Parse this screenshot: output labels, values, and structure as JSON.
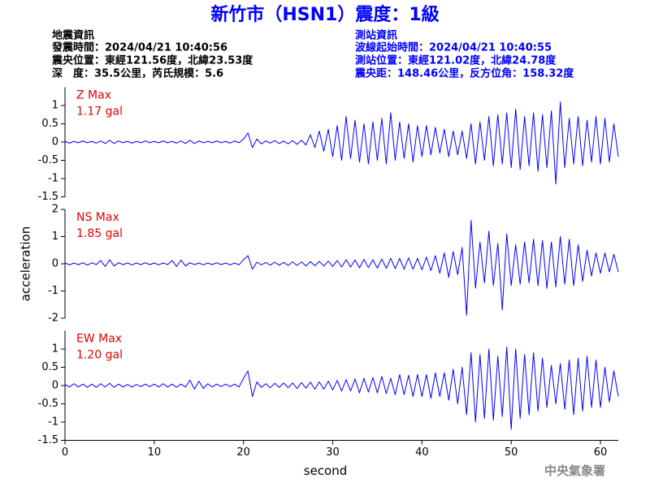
{
  "header": {
    "title": "新竹市（HSN1）震度：1級",
    "left": [
      "地震資訊",
      "發震時間：2024/04/21 10:40:56",
      "震央位置：東經121.56度，北緯23.53度",
      "深　度：35.5公里，芮氏規模：5.6"
    ],
    "right": [
      "測站資訊",
      "波線起始時間：2024/04/21 10:40:55",
      "測站位置：東經121.02度，北緯24.78度",
      "震央距：148.46公里，反方位角：158.32度"
    ],
    "footer": "中央氣象署"
  },
  "chart_data": [
    {
      "type": "line",
      "label": "Z Max",
      "max_label": "1.17 gal",
      "color": "#0000ff",
      "xlim": [
        0,
        62
      ],
      "ylim": [
        -1.5,
        1.5
      ],
      "yticks": [
        -1.5,
        -1,
        -0.5,
        0,
        0.5,
        1
      ],
      "x": [
        0,
        0.5,
        1,
        1.5,
        2,
        2.5,
        3,
        3.5,
        4,
        4.5,
        5,
        5.5,
        6,
        6.5,
        7,
        7.5,
        8,
        8.5,
        9,
        9.5,
        10,
        10.5,
        11,
        11.5,
        12,
        12.5,
        13,
        13.5,
        14,
        14.5,
        15,
        15.5,
        16,
        16.5,
        17,
        17.5,
        18,
        18.5,
        19,
        19.5,
        20,
        20.5,
        21,
        21.5,
        22,
        22.5,
        23,
        23.5,
        24,
        24.5,
        25,
        25.5,
        26,
        26.5,
        27,
        27.5,
        28,
        28.5,
        29,
        29.5,
        30,
        30.5,
        31,
        31.5,
        32,
        32.5,
        33,
        33.5,
        34,
        34.5,
        35,
        35.5,
        36,
        36.5,
        37,
        37.5,
        38,
        38.5,
        39,
        39.5,
        40,
        40.5,
        41,
        41.5,
        42,
        42.5,
        43,
        43.5,
        44,
        44.5,
        45,
        45.5,
        46,
        46.5,
        47,
        47.5,
        48,
        48.5,
        49,
        49.5,
        50,
        50.5,
        51,
        51.5,
        52,
        52.5,
        53,
        53.5,
        54,
        54.5,
        55,
        55.5,
        56,
        56.5,
        57,
        57.5,
        58,
        58.5,
        59,
        59.5,
        60,
        60.5,
        61,
        61.5,
        62
      ],
      "values": [
        0.02,
        -0.03,
        0.02,
        -0.02,
        0.03,
        -0.02,
        0.02,
        -0.03,
        0.03,
        -0.04,
        0.05,
        -0.04,
        0.03,
        -0.02,
        0.02,
        -0.03,
        0.02,
        -0.02,
        0.03,
        -0.02,
        0.02,
        -0.02,
        0.03,
        -0.02,
        0.02,
        -0.03,
        0.03,
        -0.04,
        0.05,
        -0.04,
        0.03,
        -0.02,
        0.02,
        -0.02,
        0.03,
        -0.02,
        0.02,
        -0.03,
        0.03,
        -0.02,
        0.08,
        0.25,
        -0.15,
        0.08,
        -0.05,
        0.03,
        -0.03,
        0.04,
        -0.04,
        0.03,
        -0.05,
        0.04,
        -0.06,
        0.05,
        -0.08,
        0.2,
        -0.15,
        0.3,
        -0.25,
        0.35,
        -0.4,
        0.45,
        -0.5,
        0.7,
        -0.45,
        0.6,
        -0.55,
        0.5,
        -0.6,
        0.55,
        -0.5,
        0.65,
        -0.6,
        0.8,
        -0.5,
        0.55,
        -0.45,
        0.5,
        -0.55,
        0.45,
        -0.4,
        0.45,
        -0.35,
        0.4,
        -0.3,
        0.35,
        -0.4,
        0.3,
        -0.35,
        0.3,
        -0.45,
        0.5,
        -0.6,
        0.55,
        -0.5,
        0.7,
        -0.65,
        0.75,
        -0.6,
        0.8,
        -0.7,
        0.9,
        -0.75,
        0.7,
        -0.65,
        0.8,
        -0.8,
        0.75,
        -0.7,
        0.85,
        -1.15,
        1.1,
        -0.7,
        0.65,
        -0.6,
        0.7,
        -0.65,
        0.6,
        -0.55,
        0.7,
        -0.6,
        0.65,
        -0.55,
        0.5,
        -0.4
      ]
    },
    {
      "type": "line",
      "label": "NS Max",
      "max_label": "1.85 gal",
      "color": "#0000ff",
      "ylabel": "acceleration",
      "xlim": [
        0,
        62
      ],
      "ylim": [
        -2,
        2
      ],
      "yticks": [
        -2,
        -1,
        0,
        1,
        2
      ],
      "x": [
        0,
        0.5,
        1,
        1.5,
        2,
        2.5,
        3,
        3.5,
        4,
        4.5,
        5,
        5.5,
        6,
        6.5,
        7,
        7.5,
        8,
        8.5,
        9,
        9.5,
        10,
        10.5,
        11,
        11.5,
        12,
        12.5,
        13,
        13.5,
        14,
        14.5,
        15,
        15.5,
        16,
        16.5,
        17,
        17.5,
        18,
        18.5,
        19,
        19.5,
        20,
        20.5,
        21,
        21.5,
        22,
        22.5,
        23,
        23.5,
        24,
        24.5,
        25,
        25.5,
        26,
        26.5,
        27,
        27.5,
        28,
        28.5,
        29,
        29.5,
        30,
        30.5,
        31,
        31.5,
        32,
        32.5,
        33,
        33.5,
        34,
        34.5,
        35,
        35.5,
        36,
        36.5,
        37,
        37.5,
        38,
        38.5,
        39,
        39.5,
        40,
        40.5,
        41,
        41.5,
        42,
        42.5,
        43,
        43.5,
        44,
        44.5,
        45,
        45.5,
        46,
        46.5,
        47,
        47.5,
        48,
        48.5,
        49,
        49.5,
        50,
        50.5,
        51,
        51.5,
        52,
        52.5,
        53,
        53.5,
        54,
        54.5,
        55,
        55.5,
        56,
        56.5,
        57,
        57.5,
        58,
        58.5,
        59,
        59.5,
        60,
        60.5,
        61,
        61.5,
        62
      ],
      "values": [
        0.03,
        -0.04,
        0.03,
        -0.03,
        0.04,
        -0.05,
        0.04,
        -0.03,
        0.12,
        -0.1,
        0.15,
        -0.08,
        0.04,
        -0.03,
        0.03,
        -0.04,
        0.03,
        -0.03,
        0.04,
        -0.03,
        0.03,
        -0.04,
        0.03,
        -0.03,
        0.12,
        -0.1,
        0.14,
        -0.08,
        0.04,
        -0.03,
        0.03,
        -0.04,
        0.03,
        -0.03,
        0.04,
        -0.03,
        0.03,
        -0.04,
        0.03,
        -0.04,
        0.15,
        0.3,
        -0.2,
        0.06,
        -0.04,
        0.05,
        -0.05,
        0.06,
        -0.05,
        0.05,
        -0.06,
        0.07,
        -0.06,
        0.07,
        -0.08,
        0.08,
        -0.07,
        0.09,
        -0.08,
        0.1,
        -0.1,
        0.12,
        -0.12,
        0.15,
        -0.12,
        0.14,
        -0.15,
        0.16,
        -0.14,
        0.15,
        -0.16,
        0.18,
        -0.17,
        0.2,
        -0.18,
        0.2,
        -0.2,
        0.22,
        -0.2,
        0.2,
        -0.22,
        0.25,
        -0.25,
        0.3,
        -0.35,
        0.4,
        -0.5,
        0.45,
        -0.4,
        0.6,
        -1.9,
        1.6,
        -0.9,
        0.8,
        -0.7,
        1.2,
        -0.8,
        0.75,
        -1.7,
        1.1,
        -0.8,
        0.7,
        -0.75,
        0.8,
        -0.7,
        0.9,
        -0.8,
        0.85,
        -0.9,
        0.8,
        -0.85,
        1.0,
        -0.75,
        0.9,
        -0.8,
        0.7,
        -0.65,
        0.5,
        -0.45,
        0.4,
        -0.35,
        0.4,
        -0.3,
        0.35,
        -0.3
      ]
    },
    {
      "type": "line",
      "label": "EW Max",
      "max_label": "1.20 gal",
      "color": "#0000ff",
      "xlabel": "second",
      "xlim": [
        0,
        62
      ],
      "xticks": [
        0,
        10,
        20,
        30,
        40,
        50,
        60
      ],
      "ylim": [
        -1.5,
        1.5
      ],
      "yticks": [
        -1.5,
        -1,
        -0.5,
        0,
        0.5,
        1
      ],
      "x": [
        0,
        0.5,
        1,
        1.5,
        2,
        2.5,
        3,
        3.5,
        4,
        4.5,
        5,
        5.5,
        6,
        6.5,
        7,
        7.5,
        8,
        8.5,
        9,
        9.5,
        10,
        10.5,
        11,
        11.5,
        12,
        12.5,
        13,
        13.5,
        14,
        14.5,
        15,
        15.5,
        16,
        16.5,
        17,
        17.5,
        18,
        18.5,
        19,
        19.5,
        20,
        20.5,
        21,
        21.5,
        22,
        22.5,
        23,
        23.5,
        24,
        24.5,
        25,
        25.5,
        26,
        26.5,
        27,
        27.5,
        28,
        28.5,
        29,
        29.5,
        30,
        30.5,
        31,
        31.5,
        32,
        32.5,
        33,
        33.5,
        34,
        34.5,
        35,
        35.5,
        36,
        36.5,
        37,
        37.5,
        38,
        38.5,
        39,
        39.5,
        40,
        40.5,
        41,
        41.5,
        42,
        42.5,
        43,
        43.5,
        44,
        44.5,
        45,
        45.5,
        46,
        46.5,
        47,
        47.5,
        48,
        48.5,
        49,
        49.5,
        50,
        50.5,
        51,
        51.5,
        52,
        52.5,
        53,
        53.5,
        54,
        54.5,
        55,
        55.5,
        56,
        56.5,
        57,
        57.5,
        58,
        58.5,
        59,
        59.5,
        60,
        60.5,
        61,
        61.5,
        62
      ],
      "values": [
        0.03,
        -0.04,
        0.05,
        -0.04,
        0.04,
        -0.05,
        0.04,
        -0.05,
        0.05,
        -0.04,
        0.06,
        -0.05,
        0.04,
        -0.04,
        0.03,
        -0.04,
        0.03,
        -0.03,
        0.04,
        -0.03,
        0.04,
        -0.04,
        0.05,
        -0.04,
        0.04,
        -0.05,
        0.04,
        -0.04,
        0.15,
        -0.1,
        0.12,
        -0.08,
        0.05,
        -0.04,
        0.04,
        -0.03,
        0.04,
        -0.03,
        0.04,
        -0.04,
        0.2,
        0.4,
        -0.3,
        0.1,
        -0.05,
        0.05,
        -0.06,
        0.06,
        -0.05,
        0.07,
        -0.06,
        0.07,
        -0.08,
        0.08,
        -0.07,
        0.09,
        -0.1,
        0.1,
        -0.1,
        0.12,
        -0.12,
        0.14,
        -0.15,
        0.16,
        -0.15,
        0.18,
        -0.2,
        0.2,
        -0.18,
        0.22,
        -0.2,
        0.25,
        -0.22,
        0.2,
        -0.25,
        0.3,
        -0.25,
        0.28,
        -0.3,
        0.3,
        -0.3,
        0.3,
        -0.35,
        0.35,
        -0.3,
        0.35,
        -0.4,
        0.45,
        -0.5,
        0.5,
        -0.8,
        0.9,
        -1.0,
        0.85,
        -0.9,
        1.0,
        -0.95,
        0.8,
        -0.85,
        1.05,
        -1.2,
        1.0,
        -0.9,
        0.85,
        -0.8,
        0.9,
        -0.7,
        0.75,
        -0.6,
        0.55,
        -0.5,
        0.6,
        -0.65,
        0.7,
        -0.8,
        0.75,
        -0.7,
        0.8,
        -0.6,
        0.7,
        -0.6,
        0.5,
        -0.45,
        0.4,
        -0.3
      ]
    }
  ]
}
